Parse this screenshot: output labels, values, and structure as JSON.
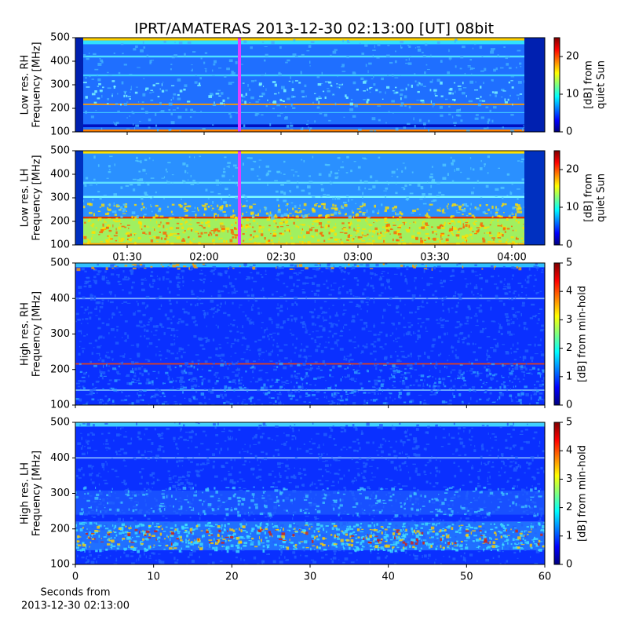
{
  "chart_data": [
    {
      "type": "heatmap",
      "title": "IPRT/AMATERAS 2013-12-30 02:13:00 [UT]   08bit",
      "ylabel": [
        "Low res. RH",
        "Frequency [MHz]"
      ],
      "ylim": [
        100,
        500
      ],
      "yticks": [
        100,
        200,
        300,
        400,
        500
      ],
      "colorbar_label": [
        "[dB] from",
        "quiet Sun"
      ],
      "clim": [
        0,
        25
      ],
      "cticks": [
        0,
        10,
        20
      ]
    },
    {
      "type": "heatmap",
      "ylabel": [
        "Low res. LH",
        "Frequency [MHz]"
      ],
      "ylim": [
        100,
        500
      ],
      "yticks": [
        100,
        200,
        300,
        400,
        500
      ],
      "xticks": [
        "01:30",
        "02:00",
        "02:30",
        "03:00",
        "03:30",
        "04:00"
      ],
      "colorbar_label": [
        "[dB] from",
        "quiet Sun"
      ],
      "clim": [
        0,
        25
      ],
      "cticks": [
        0,
        10,
        20
      ]
    },
    {
      "type": "heatmap",
      "ylabel": [
        "High res. RH",
        "Frequency [MHz]"
      ],
      "ylim": [
        100,
        500
      ],
      "yticks": [
        100,
        200,
        300,
        400,
        500
      ],
      "xlim": [
        0,
        60
      ],
      "colorbar_label": [
        "[dB] from min-hold"
      ],
      "clim": [
        0,
        5
      ],
      "cticks": [
        0,
        1,
        2,
        3,
        4,
        5
      ]
    },
    {
      "type": "heatmap",
      "ylabel": [
        "High res. LH",
        "Frequency [MHz]"
      ],
      "ylim": [
        100,
        500
      ],
      "yticks": [
        100,
        200,
        300,
        400,
        500
      ],
      "xlim": [
        0,
        60
      ],
      "xticks": [
        0,
        10,
        20,
        30,
        40,
        50,
        60
      ],
      "xlabel": [
        "Seconds from",
        "2013-12-30 02:13:00"
      ],
      "colorbar_label": [
        "[dB] from min-hold"
      ],
      "clim": [
        0,
        5
      ],
      "cticks": [
        0,
        1,
        2,
        3,
        4,
        5
      ]
    }
  ]
}
